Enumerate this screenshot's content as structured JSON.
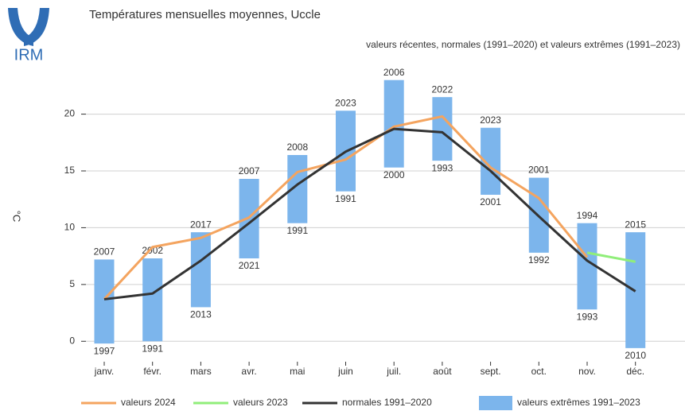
{
  "chart_data": {
    "type": "line",
    "logo_text": "IRM",
    "title": "Températures mensuelles moyennes, Uccle",
    "subtitle": "valeurs récentes, normales (1991–2020) et valeurs extrêmes (1991–2023)",
    "y_label": "°C",
    "categories": [
      "janv.",
      "févr.",
      "mars",
      "avr.",
      "mai",
      "juin",
      "juil.",
      "août",
      "sept.",
      "oct.",
      "nov.",
      "déc."
    ],
    "ylim": [
      -1.8,
      23.4
    ],
    "yticks": [
      0,
      5,
      10,
      15,
      20
    ],
    "grid": true,
    "legend_position": "bottom",
    "ranges": {
      "name": "valeurs extrêmes 1991–2023",
      "color": "#7cb5ec",
      "max": [
        7.2,
        7.3,
        9.6,
        14.3,
        16.4,
        20.3,
        23.0,
        21.5,
        18.8,
        14.4,
        10.4,
        9.6
      ],
      "min": [
        -0.2,
        0.0,
        3.0,
        7.3,
        10.4,
        13.2,
        15.3,
        15.9,
        12.9,
        7.8,
        2.8,
        -0.6
      ],
      "max_years": [
        "2007",
        "2002",
        "2017",
        "2007",
        "2008",
        "2023",
        "2006",
        "2022",
        "2023",
        "2001",
        "1994",
        "2015"
      ],
      "min_years": [
        "1997",
        "1991",
        "2013",
        "2021",
        "1991",
        "1991",
        "2000",
        "1993",
        "2001",
        "1992",
        "1993",
        "2010"
      ]
    },
    "series": [
      {
        "name": "valeurs 2024",
        "color": "#f4a45f",
        "values": [
          3.7,
          8.3,
          9.1,
          10.9,
          14.9,
          16.0,
          18.9,
          19.8,
          15.3,
          12.6,
          7.4,
          null
        ]
      },
      {
        "name": "valeurs 2023",
        "color": "#90ee7a",
        "values": [
          null,
          null,
          null,
          null,
          null,
          null,
          null,
          null,
          null,
          null,
          7.8,
          7.0
        ]
      },
      {
        "name": "normales 1991–2020",
        "color": "#333333",
        "values": [
          3.7,
          4.2,
          7.1,
          10.4,
          13.8,
          16.7,
          18.7,
          18.4,
          15.0,
          11.0,
          7.1,
          4.4
        ]
      }
    ]
  }
}
